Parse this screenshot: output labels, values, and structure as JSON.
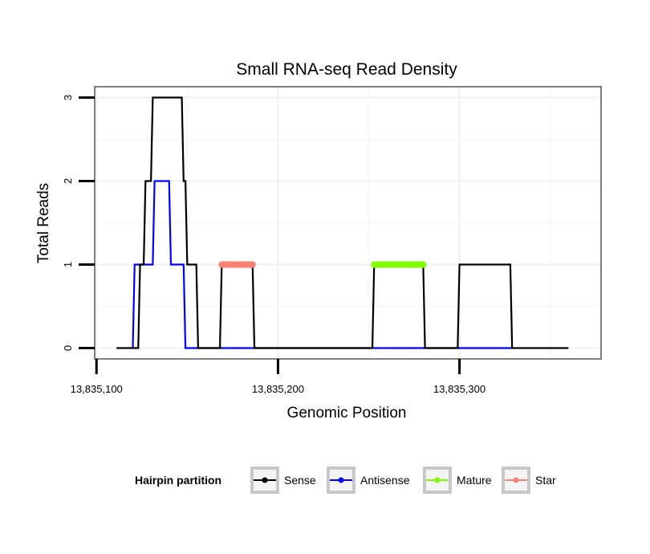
{
  "chart_data": {
    "type": "line",
    "title": "Small RNA-seq Read Density",
    "xlabel": "Genomic Position",
    "ylabel": "Total Reads",
    "xlim": [
      13835099,
      13835378
    ],
    "ylim": [
      -0.13,
      3.13
    ],
    "x_ticks": [
      13835100,
      13835200,
      13835300
    ],
    "x_tick_labels": [
      "13,835,100",
      "13,835,200",
      "13,835,300"
    ],
    "y_ticks": [
      0,
      1,
      2,
      3
    ],
    "y_tick_labels": [
      "0",
      "1",
      "2",
      "3"
    ],
    "grid": true,
    "legend_position": "bottom",
    "legend_title": "Hairpin partition",
    "series": [
      {
        "name": "Sense",
        "color": "#000000",
        "x": [
          13835111,
          13835123,
          13835124,
          13835126,
          13835127,
          13835130,
          13835131,
          13835147,
          13835148,
          13835149,
          13835150,
          13835155,
          13835156,
          13835168,
          13835169,
          13835186,
          13835187,
          13835252,
          13835253,
          13835280,
          13835281,
          13835299,
          13835300,
          13835328,
          13835329,
          13835360
        ],
        "y": [
          0,
          0,
          1,
          1,
          2,
          2,
          3,
          3,
          2,
          2,
          1,
          1,
          0,
          0,
          1,
          1,
          0,
          0,
          1,
          1,
          0,
          0,
          1,
          1,
          0,
          0
        ]
      },
      {
        "name": "Antisense",
        "color": "#0000ff",
        "x": [
          13835120,
          13835121,
          13835123,
          13835124,
          13835127,
          13835128,
          13835131,
          13835132,
          13835140,
          13835141,
          13835148,
          13835149,
          13835329
        ],
        "y": [
          0,
          1,
          1,
          1,
          1,
          1,
          1,
          2,
          2,
          1,
          1,
          0,
          0
        ]
      },
      {
        "name": "Mature",
        "color": "#7fff00",
        "x": [
          13835253,
          13835280
        ],
        "y": [
          1,
          1
        ]
      },
      {
        "name": "Star",
        "color": "#fa8072",
        "x": [
          13835169,
          13835186
        ],
        "y": [
          1,
          1
        ]
      }
    ]
  }
}
